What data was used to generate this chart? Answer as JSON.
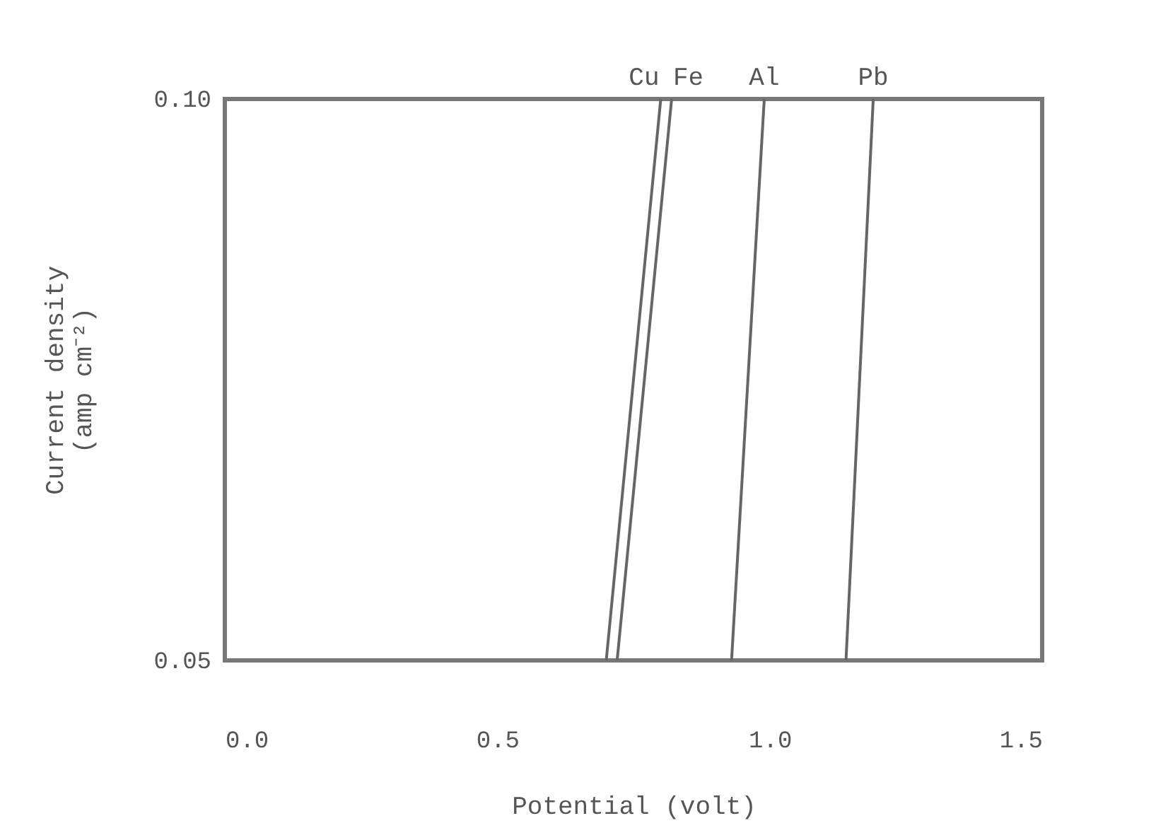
{
  "chart_data": {
    "type": "line",
    "xlabel": "Potential (volt)",
    "ylabel": "Current density (amp cm⁻²)",
    "xlim": [
      0.0,
      1.5
    ],
    "xticks": [
      {
        "value": 0.0,
        "label": "0.0"
      },
      {
        "value": 0.5,
        "label": "0.5"
      },
      {
        "value": 1.0,
        "label": "1.0"
      },
      {
        "value": 1.5,
        "label": "1.5"
      }
    ],
    "ylim": [
      0.05,
      0.1
    ],
    "yticks": [
      {
        "value": 0.05,
        "label": "0.05"
      },
      {
        "value": 0.1,
        "label": "0.10"
      }
    ],
    "grid": false,
    "marker": "none",
    "line_style": "solid",
    "series": [
      {
        "name": "Cu",
        "color": "#666666",
        "x": [
          0.7,
          0.8
        ],
        "values": [
          0.05,
          0.1
        ]
      },
      {
        "name": "Fe",
        "color": "#666666",
        "x": [
          0.72,
          0.82
        ],
        "values": [
          0.05,
          0.1
        ]
      },
      {
        "name": "Al",
        "color": "#666666",
        "x": [
          0.93,
          0.99
        ],
        "values": [
          0.05,
          0.1
        ]
      },
      {
        "name": "Pb",
        "color": "#666666",
        "x": [
          1.14,
          1.19
        ],
        "values": [
          0.05,
          0.1
        ]
      }
    ]
  }
}
